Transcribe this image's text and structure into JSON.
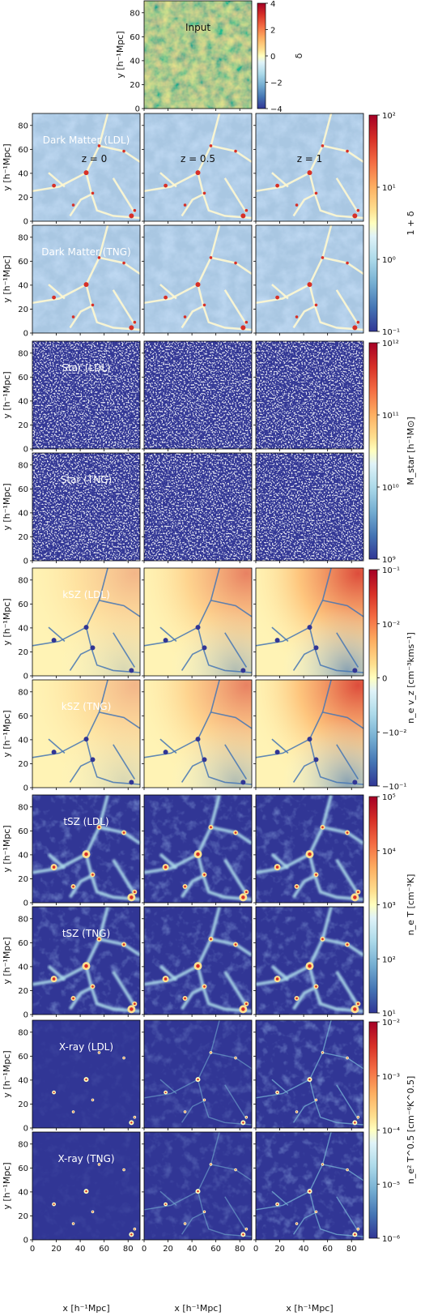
{
  "chart_data": {
    "type": "heatmap",
    "axis_label_x": "x [h⁻¹Mpc]",
    "axis_label_y": "y [h⁻¹Mpc]",
    "x_ticks": [
      "0",
      "20",
      "40",
      "60",
      "80"
    ],
    "y_ticks": [
      "0",
      "20",
      "40",
      "60",
      "80"
    ],
    "axis_range": [
      0,
      90
    ],
    "redshift_labels": [
      "z = 0",
      "z = 0.5",
      "z = 1"
    ],
    "input_panel": {
      "label": "Input",
      "colorbar": {
        "label": "δ",
        "ticks": [
          "4",
          "2",
          "0",
          "−2",
          "−4"
        ],
        "range": [
          -4,
          4
        ],
        "scale": "linear"
      }
    },
    "panels": [
      {
        "label": "Dark Matter (LDL)",
        "field": "dm"
      },
      {
        "label": "Dark Matter (TNG)",
        "field": "dm"
      },
      {
        "label": "Star (LDL)",
        "field": "star"
      },
      {
        "label": "Star (TNG)",
        "field": "star"
      },
      {
        "label": "kSZ (LDL)",
        "field": "ksz"
      },
      {
        "label": "kSZ (TNG)",
        "field": "ksz"
      },
      {
        "label": "tSZ (LDL)",
        "field": "tsz"
      },
      {
        "label": "tSZ (TNG)",
        "field": "tsz"
      },
      {
        "label": "X-ray (LDL)",
        "field": "xray"
      },
      {
        "label": "X-ray (TNG)",
        "field": "xray"
      }
    ],
    "colorbars": [
      {
        "field": "dm",
        "label": "1 + δ",
        "ticks": [
          "10²",
          "10¹",
          "10⁰",
          "10⁻¹"
        ],
        "range": [
          0.1,
          100
        ],
        "scale": "log"
      },
      {
        "field": "star",
        "label": "M_star [h⁻¹M⊙]",
        "ticks": [
          "10¹²",
          "10¹¹",
          "10¹⁰",
          "10⁹"
        ],
        "range": [
          1000000000.0,
          1000000000000.0
        ],
        "scale": "log"
      },
      {
        "field": "ksz",
        "label": "n_e v_z [cm⁻³kms⁻¹]",
        "ticks": [
          "10⁻¹",
          "10⁻²",
          "0",
          "−10⁻²",
          "−10⁻¹"
        ],
        "range": [
          -0.1,
          0.1
        ],
        "scale": "symlog"
      },
      {
        "field": "tsz",
        "label": "n_e T [cm⁻³K]",
        "ticks": [
          "10⁵",
          "10⁴",
          "10³",
          "10²",
          "10¹"
        ],
        "range": [
          10,
          100000
        ],
        "scale": "log"
      },
      {
        "field": "xray",
        "label": "n_e² T^0.5 [cm⁻⁶K^0.5]",
        "ticks": [
          "10⁻²",
          "10⁻³",
          "10⁻⁴",
          "10⁻⁵",
          "10⁻⁶"
        ],
        "range": [
          1e-06,
          0.01
        ],
        "scale": "log"
      }
    ],
    "colormap": "RdYlBu_r"
  }
}
